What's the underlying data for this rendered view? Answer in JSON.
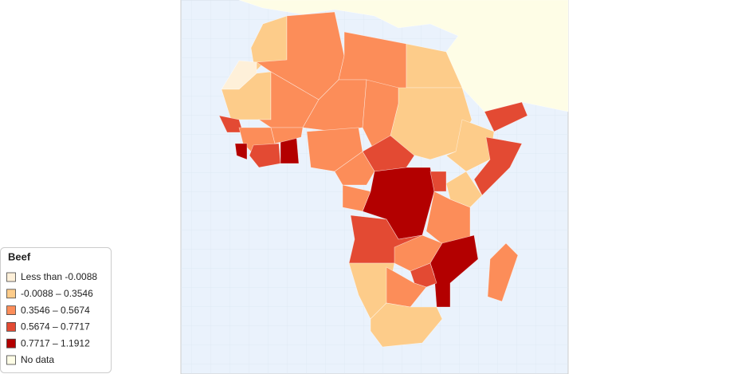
{
  "legend": {
    "title": "Beef",
    "items": [
      {
        "label": "Less than -0.0088",
        "color": "#fef0d9"
      },
      {
        "label": "-0.0088 – 0.3546",
        "color": "#fdcc8a"
      },
      {
        "label": "0.3546 – 0.5674",
        "color": "#fc8d59"
      },
      {
        "label": "0.5674 – 0.7717",
        "color": "#e34a33"
      },
      {
        "label": "0.7717 – 1.1912",
        "color": "#b30000"
      },
      {
        "label": "No data",
        "color": "#fefde6"
      }
    ]
  }
}
